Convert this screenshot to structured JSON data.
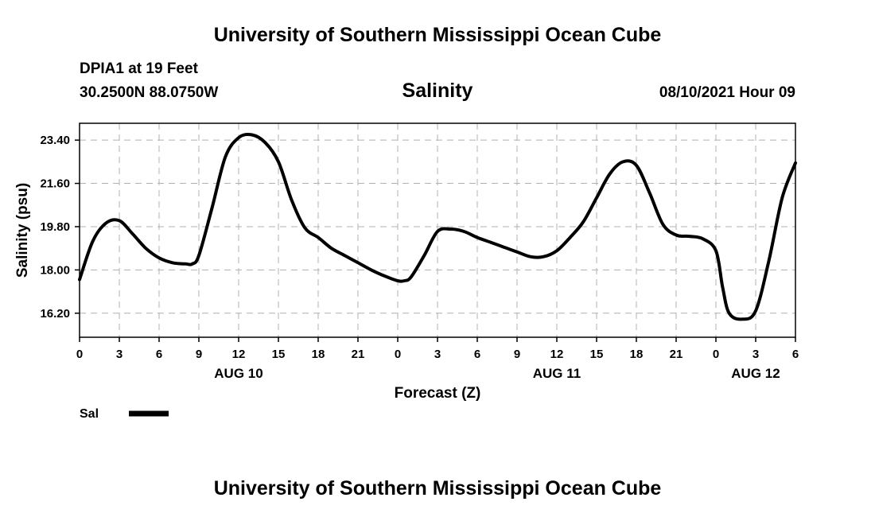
{
  "header": {
    "top_title": "University of Southern Mississippi Ocean Cube",
    "station": "DPIA1 at 19 Feet",
    "coords": "30.2500N  88.0750W",
    "variable_title": "Salinity",
    "timestamp": "08/10/2021 Hour 09"
  },
  "footer": {
    "bottom_title": "University of Southern Mississippi Ocean Cube"
  },
  "chart_data": {
    "type": "line",
    "ylabel": "Salinity (psu)",
    "xlabel": "Forecast (Z)",
    "ylim": [
      15.2,
      24.1
    ],
    "xlim": [
      0,
      54
    ],
    "yticks": [
      16.2,
      18.0,
      19.8,
      21.6,
      23.4
    ],
    "ytick_labels": [
      "16.20",
      "18.00",
      "19.80",
      "21.60",
      "23.40"
    ],
    "xticks": [
      0,
      3,
      6,
      9,
      12,
      15,
      18,
      21,
      24,
      27,
      30,
      33,
      36,
      39,
      42,
      45,
      48,
      51,
      54
    ],
    "xtick_labels": [
      "0",
      "3",
      "6",
      "9",
      "12",
      "15",
      "18",
      "21",
      "0",
      "3",
      "6",
      "9",
      "12",
      "15",
      "18",
      "21",
      "0",
      "3",
      "6"
    ],
    "date_labels": [
      {
        "x": 12,
        "label": "AUG 10"
      },
      {
        "x": 36,
        "label": "AUG 11"
      },
      {
        "x": 51,
        "label": "AUG 12"
      }
    ],
    "grid": true,
    "legend": "bottom-left",
    "series": [
      {
        "name": "Sal",
        "color": "#000000",
        "x": [
          0,
          1,
          2,
          3,
          4,
          5,
          6,
          7,
          8,
          8.5,
          9,
          10,
          11,
          12,
          13,
          14,
          15,
          16,
          17,
          18,
          19,
          20,
          21,
          22,
          23,
          24,
          24.5,
          25,
          26,
          27,
          28,
          29,
          30,
          31,
          32,
          33,
          34,
          35,
          36,
          37,
          38,
          39,
          40,
          41,
          42,
          43,
          44,
          45,
          46,
          47,
          48,
          48.5,
          49,
          50,
          51,
          52,
          53,
          54
        ],
        "y": [
          17.6,
          19.2,
          19.95,
          20.05,
          19.5,
          18.9,
          18.5,
          18.3,
          18.25,
          18.25,
          18.6,
          20.6,
          22.7,
          23.5,
          23.62,
          23.3,
          22.5,
          20.9,
          19.75,
          19.35,
          18.9,
          18.6,
          18.3,
          18.0,
          17.75,
          17.55,
          17.55,
          17.7,
          18.6,
          19.6,
          19.7,
          19.6,
          19.35,
          19.15,
          18.95,
          18.75,
          18.55,
          18.55,
          18.8,
          19.35,
          20.0,
          21.0,
          22.0,
          22.5,
          22.35,
          21.2,
          19.9,
          19.45,
          19.4,
          19.3,
          18.8,
          17.3,
          16.2,
          15.95,
          16.3,
          18.4,
          21.0,
          22.45
        ]
      }
    ]
  }
}
